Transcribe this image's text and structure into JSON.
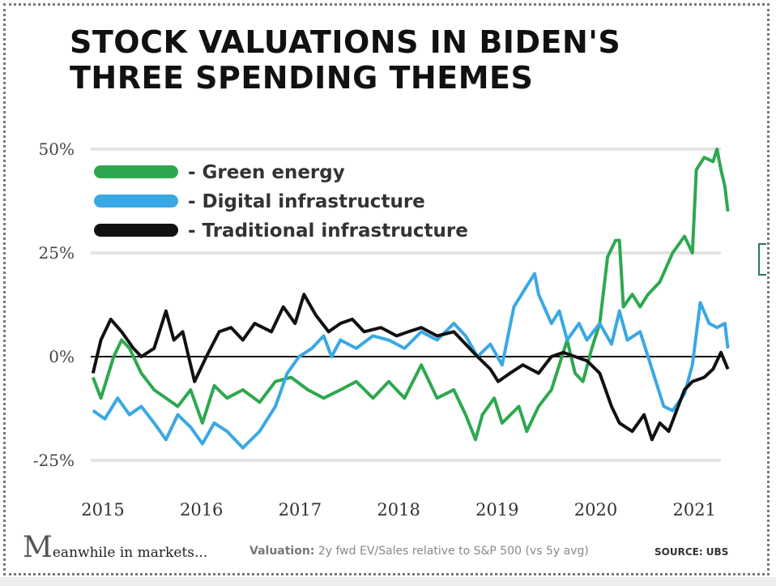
{
  "title": "STOCK VALUATIONS IN BIDEN'S THREE SPENDING THEMES",
  "footer": {
    "logo_initial": "M",
    "logo_rest": "eanwhile in markets...",
    "note_label": "Valuation:",
    "note_text": "2y fwd EV/Sales relative to S&P 500 (vs 5y avg)",
    "source": "SOURCE:  UBS"
  },
  "chart_data": {
    "type": "line",
    "title": "STOCK VALUATIONS IN BIDEN'S THREE SPENDING THEMES",
    "xlabel": "",
    "ylabel": "",
    "x_ticks": [
      "2015",
      "2016",
      "2017",
      "2018",
      "2019",
      "2020",
      "2021"
    ],
    "y_ticks": [
      {
        "v": 50,
        "label": "50%"
      },
      {
        "v": 25,
        "label": "25%"
      },
      {
        "v": 0,
        "label": "0%"
      },
      {
        "v": -25,
        "label": "-25%"
      }
    ],
    "ylim": [
      -25,
      50
    ],
    "grid": true,
    "legend": "top-left",
    "series": [
      {
        "name": "- Green energy",
        "color": "#2ea84f",
        "points": [
          [
            2014.9,
            -5
          ],
          [
            2014.98,
            -10
          ],
          [
            2015.11,
            0
          ],
          [
            2015.19,
            4
          ],
          [
            2015.27,
            2
          ],
          [
            2015.39,
            -4
          ],
          [
            2015.52,
            -8
          ],
          [
            2015.64,
            -10
          ],
          [
            2015.76,
            -12
          ],
          [
            2015.89,
            -8
          ],
          [
            2016.01,
            -16
          ],
          [
            2016.13,
            -7
          ],
          [
            2016.26,
            -10
          ],
          [
            2016.42,
            -8
          ],
          [
            2016.59,
            -11
          ],
          [
            2016.75,
            -6
          ],
          [
            2016.91,
            -5
          ],
          [
            2017.08,
            -8
          ],
          [
            2017.24,
            -10
          ],
          [
            2017.41,
            -8
          ],
          [
            2017.57,
            -6
          ],
          [
            2017.74,
            -10
          ],
          [
            2017.9,
            -6
          ],
          [
            2018.06,
            -10
          ],
          [
            2018.23,
            -2
          ],
          [
            2018.39,
            -10
          ],
          [
            2018.56,
            -8
          ],
          [
            2018.68,
            -14
          ],
          [
            2018.78,
            -20
          ],
          [
            2018.85,
            -14
          ],
          [
            2018.97,
            -10
          ],
          [
            2019.05,
            -16
          ],
          [
            2019.22,
            -12
          ],
          [
            2019.3,
            -18
          ],
          [
            2019.42,
            -12
          ],
          [
            2019.55,
            -8
          ],
          [
            2019.71,
            4
          ],
          [
            2019.79,
            -4
          ],
          [
            2019.87,
            -6
          ],
          [
            2019.96,
            2
          ],
          [
            2020.04,
            8
          ],
          [
            2020.12,
            24
          ],
          [
            2020.2,
            28
          ],
          [
            2020.24,
            28
          ],
          [
            2020.28,
            12
          ],
          [
            2020.37,
            15
          ],
          [
            2020.45,
            12
          ],
          [
            2020.53,
            15
          ],
          [
            2020.65,
            18
          ],
          [
            2020.78,
            25
          ],
          [
            2020.9,
            29
          ],
          [
            2020.98,
            25
          ],
          [
            2021.02,
            45
          ],
          [
            2021.1,
            48
          ],
          [
            2021.19,
            47
          ],
          [
            2021.23,
            50
          ],
          [
            2021.27,
            45
          ],
          [
            2021.31,
            41
          ],
          [
            2021.34,
            35
          ]
        ]
      },
      {
        "name": "- Digital infrastructure",
        "color": "#3aa8e4",
        "points": [
          [
            2014.9,
            -13
          ],
          [
            2015.02,
            -15
          ],
          [
            2015.15,
            -10
          ],
          [
            2015.27,
            -14
          ],
          [
            2015.39,
            -12
          ],
          [
            2015.52,
            -16
          ],
          [
            2015.64,
            -20
          ],
          [
            2015.76,
            -14
          ],
          [
            2015.89,
            -17
          ],
          [
            2016.01,
            -21
          ],
          [
            2016.13,
            -16
          ],
          [
            2016.26,
            -18
          ],
          [
            2016.42,
            -22
          ],
          [
            2016.59,
            -18
          ],
          [
            2016.75,
            -12
          ],
          [
            2016.87,
            -4
          ],
          [
            2016.99,
            0
          ],
          [
            2017.12,
            2
          ],
          [
            2017.24,
            5
          ],
          [
            2017.32,
            0
          ],
          [
            2017.41,
            4
          ],
          [
            2017.57,
            2
          ],
          [
            2017.74,
            5
          ],
          [
            2017.9,
            4
          ],
          [
            2018.06,
            2
          ],
          [
            2018.23,
            6
          ],
          [
            2018.39,
            4
          ],
          [
            2018.56,
            8
          ],
          [
            2018.68,
            5
          ],
          [
            2018.8,
            0
          ],
          [
            2018.93,
            3
          ],
          [
            2019.05,
            -2
          ],
          [
            2019.17,
            12
          ],
          [
            2019.3,
            17
          ],
          [
            2019.38,
            20
          ],
          [
            2019.42,
            15
          ],
          [
            2019.55,
            8
          ],
          [
            2019.63,
            11
          ],
          [
            2019.71,
            4
          ],
          [
            2019.83,
            8
          ],
          [
            2019.91,
            4
          ],
          [
            2020.04,
            8
          ],
          [
            2020.16,
            3
          ],
          [
            2020.24,
            11
          ],
          [
            2020.32,
            4
          ],
          [
            2020.45,
            6
          ],
          [
            2020.53,
            0
          ],
          [
            2020.61,
            -6
          ],
          [
            2020.69,
            -12
          ],
          [
            2020.78,
            -13
          ],
          [
            2020.9,
            -9
          ],
          [
            2020.98,
            -2
          ],
          [
            2021.06,
            13
          ],
          [
            2021.15,
            8
          ],
          [
            2021.23,
            7
          ],
          [
            2021.31,
            8
          ],
          [
            2021.34,
            2
          ]
        ]
      },
      {
        "name": "- Traditional infrastructure",
        "color": "#111111",
        "points": [
          [
            2014.9,
            -4
          ],
          [
            2014.98,
            4
          ],
          [
            2015.08,
            9
          ],
          [
            2015.19,
            6
          ],
          [
            2015.31,
            2
          ],
          [
            2015.39,
            0
          ],
          [
            2015.52,
            2
          ],
          [
            2015.64,
            11
          ],
          [
            2015.72,
            4
          ],
          [
            2015.81,
            6
          ],
          [
            2015.93,
            -6
          ],
          [
            2016.05,
            0
          ],
          [
            2016.18,
            6
          ],
          [
            2016.3,
            7
          ],
          [
            2016.42,
            4
          ],
          [
            2016.54,
            8
          ],
          [
            2016.71,
            6
          ],
          [
            2016.83,
            12
          ],
          [
            2016.95,
            8
          ],
          [
            2017.04,
            15
          ],
          [
            2017.16,
            10
          ],
          [
            2017.29,
            6
          ],
          [
            2017.41,
            8
          ],
          [
            2017.53,
            9
          ],
          [
            2017.65,
            6
          ],
          [
            2017.82,
            7
          ],
          [
            2017.98,
            5
          ],
          [
            2018.1,
            6
          ],
          [
            2018.23,
            7
          ],
          [
            2018.39,
            5
          ],
          [
            2018.56,
            6
          ],
          [
            2018.68,
            3
          ],
          [
            2018.8,
            0
          ],
          [
            2018.93,
            -3
          ],
          [
            2019.01,
            -6
          ],
          [
            2019.13,
            -4
          ],
          [
            2019.26,
            -2
          ],
          [
            2019.42,
            -4
          ],
          [
            2019.55,
            0
          ],
          [
            2019.67,
            1
          ],
          [
            2019.79,
            0
          ],
          [
            2019.91,
            -1
          ],
          [
            2020.04,
            -4
          ],
          [
            2020.16,
            -12
          ],
          [
            2020.24,
            -16
          ],
          [
            2020.37,
            -18
          ],
          [
            2020.49,
            -14
          ],
          [
            2020.57,
            -20
          ],
          [
            2020.65,
            -16
          ],
          [
            2020.74,
            -18
          ],
          [
            2020.82,
            -13
          ],
          [
            2020.9,
            -8
          ],
          [
            2020.98,
            -6
          ],
          [
            2021.1,
            -5
          ],
          [
            2021.19,
            -3
          ],
          [
            2021.27,
            1
          ],
          [
            2021.34,
            -3
          ]
        ]
      }
    ]
  }
}
